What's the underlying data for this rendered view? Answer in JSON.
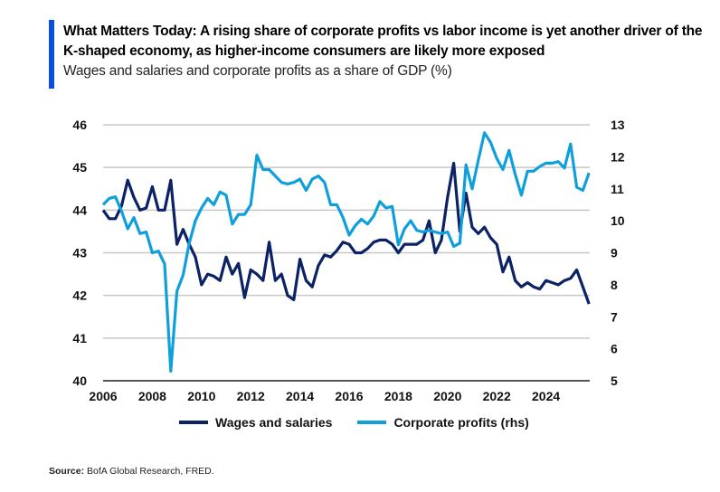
{
  "header": {
    "title": "What Matters Today: A rising share of corporate profits vs labor income is yet another driver of the K-shaped economy, as higher-income consumers are likely more exposed",
    "subtitle": "Wages and salaries and corporate profits as a share of GDP (%)"
  },
  "source": {
    "label": "Source:",
    "text": "BofA Global Research, FRED."
  },
  "colors": {
    "accent": "#0a4fd6",
    "wages": "#0b2265",
    "profits": "#0fa0dc",
    "grid": "#c8c8c8"
  },
  "chart_data": {
    "type": "line",
    "x_start": 2006,
    "frequency": "quarterly",
    "xlim": [
      2006,
      2026
    ],
    "x_ticks": [
      "2006",
      "2008",
      "2010",
      "2012",
      "2014",
      "2016",
      "2018",
      "2020",
      "2022",
      "2024"
    ],
    "ylim_left": [
      40,
      46
    ],
    "y_ticks_left": [
      "40",
      "41",
      "42",
      "43",
      "44",
      "45",
      "46"
    ],
    "ylim_right": [
      5,
      13
    ],
    "y_ticks_right": [
      "5",
      "6",
      "7",
      "8",
      "9",
      "10",
      "11",
      "12",
      "13"
    ],
    "grid": "horizontal",
    "legend": "bottom",
    "series": [
      {
        "name": "Wages and salaries",
        "axis": "left",
        "color": "#0b2265",
        "values": [
          44.0,
          43.8,
          43.8,
          44.1,
          44.7,
          44.3,
          44.0,
          44.05,
          44.55,
          44.0,
          44.0,
          44.7,
          43.2,
          43.55,
          43.2,
          42.9,
          42.25,
          42.5,
          42.45,
          42.35,
          42.9,
          42.5,
          42.75,
          41.95,
          42.6,
          42.5,
          42.35,
          43.25,
          42.35,
          42.5,
          42.0,
          41.9,
          42.85,
          42.35,
          42.2,
          42.7,
          42.95,
          42.9,
          43.05,
          43.25,
          43.2,
          43.0,
          43.0,
          43.1,
          43.25,
          43.3,
          43.3,
          43.2,
          43.0,
          43.2,
          43.2,
          43.2,
          43.3,
          43.75,
          43.0,
          43.3,
          44.3,
          45.1,
          43.5,
          44.4,
          43.6,
          43.45,
          43.6,
          43.35,
          43.2,
          42.55,
          42.9,
          42.35,
          42.2,
          42.3,
          42.2,
          42.15,
          42.35,
          42.3,
          42.25,
          42.35,
          42.4,
          42.6,
          42.2,
          41.8
        ]
      },
      {
        "name": "Corporate profits (rhs)",
        "axis": "right",
        "color": "#0fa0dc",
        "values": [
          10.5,
          10.7,
          10.75,
          10.3,
          9.75,
          10.1,
          9.6,
          9.65,
          9.0,
          9.05,
          8.65,
          5.3,
          7.8,
          8.3,
          9.3,
          10.0,
          10.4,
          10.7,
          10.5,
          10.9,
          10.8,
          9.9,
          10.2,
          10.2,
          10.5,
          12.05,
          11.6,
          11.6,
          11.4,
          11.2,
          11.15,
          11.2,
          11.3,
          10.95,
          11.3,
          11.4,
          11.2,
          10.5,
          10.5,
          10.1,
          9.55,
          9.85,
          10.05,
          9.9,
          10.15,
          10.6,
          10.4,
          10.45,
          9.25,
          9.75,
          10.0,
          9.7,
          9.65,
          9.7,
          9.65,
          9.6,
          9.65,
          9.2,
          9.3,
          11.75,
          11.0,
          11.9,
          12.75,
          12.45,
          11.95,
          11.6,
          12.2,
          11.45,
          10.8,
          11.55,
          11.55,
          11.7,
          11.8,
          11.8,
          11.85,
          11.65,
          12.4,
          11.05,
          10.95,
          11.5
        ]
      }
    ]
  }
}
